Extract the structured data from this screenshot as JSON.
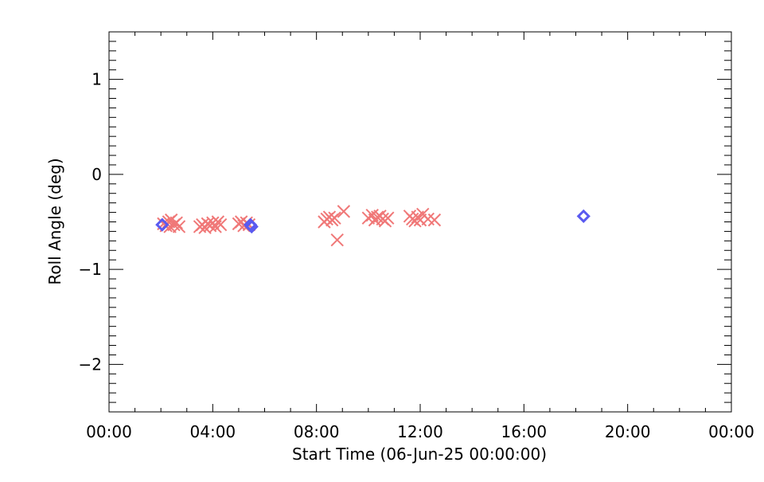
{
  "chart_data": {
    "type": "scatter",
    "title": "",
    "xlabel": "Start Time (06-Jun-25 00:00:00)",
    "ylabel": "Roll Angle (deg)",
    "xlim": [
      0,
      24
    ],
    "ylim": [
      -2.5,
      1.5
    ],
    "x_ticks": [
      0,
      4,
      8,
      12,
      16,
      20,
      24
    ],
    "x_tick_labels": [
      "00:00",
      "04:00",
      "08:00",
      "12:00",
      "16:00",
      "20:00",
      "00:00"
    ],
    "y_ticks": [
      1,
      0,
      -1,
      -2
    ],
    "y_tick_labels": [
      "1",
      "0",
      "−1",
      "−2"
    ],
    "grid": false,
    "series": [
      {
        "marker": "x",
        "color": "#f07878",
        "points": [
          [
            2.1,
            -0.52
          ],
          [
            2.2,
            -0.54
          ],
          [
            2.3,
            -0.5
          ],
          [
            2.35,
            -0.55
          ],
          [
            2.4,
            -0.48
          ],
          [
            2.5,
            -0.53
          ],
          [
            2.6,
            -0.51
          ],
          [
            2.7,
            -0.55
          ],
          [
            3.5,
            -0.55
          ],
          [
            3.6,
            -0.53
          ],
          [
            3.7,
            -0.56
          ],
          [
            3.8,
            -0.52
          ],
          [
            3.9,
            -0.54
          ],
          [
            4.0,
            -0.51
          ],
          [
            4.1,
            -0.55
          ],
          [
            4.2,
            -0.5
          ],
          [
            4.3,
            -0.53
          ],
          [
            5.0,
            -0.52
          ],
          [
            5.1,
            -0.5
          ],
          [
            5.2,
            -0.54
          ],
          [
            5.3,
            -0.51
          ],
          [
            5.4,
            -0.53
          ],
          [
            8.3,
            -0.5
          ],
          [
            8.4,
            -0.47
          ],
          [
            8.5,
            -0.45
          ],
          [
            8.6,
            -0.48
          ],
          [
            8.7,
            -0.46
          ],
          [
            8.8,
            -0.69
          ],
          [
            9.05,
            -0.39
          ],
          [
            10.0,
            -0.46
          ],
          [
            10.15,
            -0.43
          ],
          [
            10.25,
            -0.48
          ],
          [
            10.35,
            -0.45
          ],
          [
            10.45,
            -0.44
          ],
          [
            10.55,
            -0.47
          ],
          [
            10.65,
            -0.49
          ],
          [
            10.75,
            -0.46
          ],
          [
            11.6,
            -0.44
          ],
          [
            11.7,
            -0.47
          ],
          [
            11.8,
            -0.49
          ],
          [
            11.9,
            -0.45
          ],
          [
            12.0,
            -0.48
          ],
          [
            12.1,
            -0.42
          ],
          [
            12.3,
            -0.47
          ],
          [
            12.55,
            -0.48
          ]
        ]
      },
      {
        "marker": "diamond",
        "color": "#5a5af0",
        "points": [
          [
            2.05,
            -0.53
          ],
          [
            5.45,
            -0.53
          ],
          [
            5.5,
            -0.55
          ],
          [
            18.3,
            -0.44
          ]
        ]
      }
    ]
  }
}
